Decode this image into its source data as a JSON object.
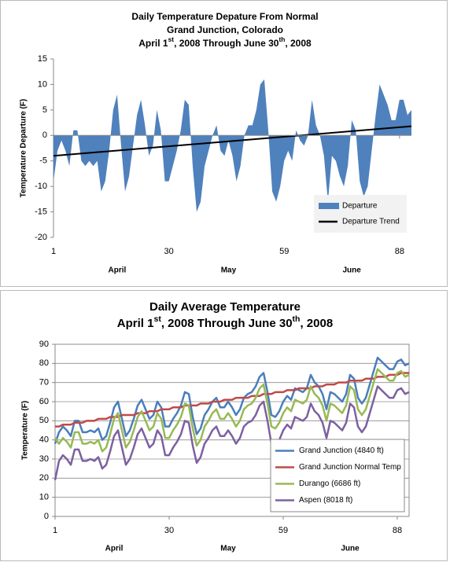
{
  "chart_data": [
    {
      "type": "area",
      "title": [
        "Daily Temperature Depature From Normal",
        "Grand Junction, Colorado"
      ],
      "subtitle_parts": [
        "April 1",
        "st",
        ", 2008 Through June 30",
        "th",
        ", 2008"
      ],
      "y_label": "Temperature Departure (F)",
      "x": [
        1,
        2,
        3,
        4,
        5,
        6,
        7,
        8,
        9,
        10,
        11,
        12,
        13,
        14,
        15,
        16,
        17,
        18,
        19,
        20,
        21,
        22,
        23,
        24,
        25,
        26,
        27,
        28,
        29,
        30,
        31,
        32,
        33,
        34,
        35,
        36,
        37,
        38,
        39,
        40,
        41,
        42,
        43,
        44,
        45,
        46,
        47,
        48,
        49,
        50,
        51,
        52,
        53,
        54,
        55,
        56,
        57,
        58,
        59,
        60,
        61,
        62,
        63,
        64,
        65,
        66,
        67,
        68,
        69,
        70,
        71,
        72,
        73,
        74,
        75,
        76,
        77,
        78,
        79,
        80,
        81,
        82,
        83,
        84,
        85,
        86,
        87,
        88,
        89,
        90,
        91
      ],
      "x_groups": [
        "April",
        "May",
        "June"
      ],
      "series": [
        {
          "name": "Departure",
          "type": "area",
          "color": "#4f81bd",
          "values": [
            -9,
            -3,
            -1,
            -3,
            -6,
            1,
            1,
            -5,
            -6,
            -5,
            -6,
            -5,
            -11,
            -9,
            -3,
            5,
            8,
            -2,
            -11,
            -8,
            -2,
            4,
            7,
            2,
            -4,
            -2,
            5,
            1,
            -9,
            -9,
            -6,
            -3,
            1,
            7,
            6,
            -6,
            -15,
            -13,
            -6,
            -3,
            0,
            2,
            -3,
            -4,
            -1,
            -4,
            -9,
            -6,
            0,
            2,
            2,
            5,
            10,
            11,
            1,
            -11,
            -13,
            -10,
            -5,
            -3,
            -5,
            1,
            -1,
            -2,
            0,
            7,
            2,
            0,
            -4,
            -13,
            -4,
            -5,
            -8,
            -10,
            -6,
            3,
            1,
            -9,
            -12,
            -10,
            -3,
            4,
            10,
            8,
            6,
            3,
            3,
            7,
            7,
            4,
            5
          ]
        },
        {
          "name": "Departure Trend",
          "type": "line",
          "color": "#000000",
          "x": [
            1,
            91
          ],
          "values": [
            -4,
            1.8
          ]
        }
      ],
      "xlim": [
        1,
        91
      ],
      "xticks": [
        1,
        30,
        59,
        88
      ],
      "ylim": [
        -20,
        15
      ],
      "yticks": [
        -20,
        -15,
        -10,
        -5,
        0,
        5,
        10,
        15
      ],
      "grid": false,
      "legend": "lower right"
    },
    {
      "type": "line",
      "title": [
        "Daily Average Temperature"
      ],
      "subtitle_parts": [
        "April 1",
        "st",
        ", 2008 Through June 30",
        "th",
        ", 2008"
      ],
      "y_label": "Temperature (F)",
      "x": [
        1,
        2,
        3,
        4,
        5,
        6,
        7,
        8,
        9,
        10,
        11,
        12,
        13,
        14,
        15,
        16,
        17,
        18,
        19,
        20,
        21,
        22,
        23,
        24,
        25,
        26,
        27,
        28,
        29,
        30,
        31,
        32,
        33,
        34,
        35,
        36,
        37,
        38,
        39,
        40,
        41,
        42,
        43,
        44,
        45,
        46,
        47,
        48,
        49,
        50,
        51,
        52,
        53,
        54,
        55,
        56,
        57,
        58,
        59,
        60,
        61,
        62,
        63,
        64,
        65,
        66,
        67,
        68,
        69,
        70,
        71,
        72,
        73,
        74,
        75,
        76,
        77,
        78,
        79,
        80,
        81,
        82,
        83,
        84,
        85,
        86,
        87,
        88,
        89,
        90,
        91
      ],
      "x_groups": [
        "April",
        "May",
        "June"
      ],
      "series": [
        {
          "name": "Grand Junction (4840 ft)",
          "type": "line",
          "color": "#4a7ebb",
          "values": [
            38,
            44,
            47,
            45,
            42,
            50,
            50,
            44,
            44,
            45,
            44,
            46,
            40,
            42,
            49,
            57,
            60,
            51,
            42,
            45,
            51,
            58,
            61,
            56,
            51,
            53,
            60,
            57,
            47,
            47,
            51,
            54,
            58,
            65,
            64,
            52,
            43,
            46,
            53,
            56,
            60,
            62,
            57,
            57,
            60,
            57,
            53,
            56,
            62,
            64,
            65,
            68,
            73,
            75,
            65,
            53,
            52,
            55,
            60,
            63,
            61,
            67,
            66,
            65,
            67,
            74,
            70,
            68,
            64,
            56,
            65,
            64,
            62,
            60,
            64,
            74,
            72,
            62,
            59,
            62,
            69,
            76,
            83,
            81,
            79,
            77,
            77,
            81,
            82,
            79,
            80
          ]
        },
        {
          "name": "Grand Junction Normal Temp",
          "type": "line",
          "color": "#be4b48",
          "values": [
            47,
            47,
            48,
            48,
            48,
            49,
            49,
            49,
            50,
            50,
            50,
            51,
            51,
            51,
            52,
            52,
            52,
            53,
            53,
            53,
            53,
            54,
            54,
            54,
            55,
            55,
            55,
            56,
            56,
            56,
            57,
            57,
            57,
            58,
            58,
            58,
            58,
            59,
            59,
            59,
            60,
            60,
            60,
            61,
            61,
            61,
            62,
            62,
            62,
            62,
            63,
            63,
            63,
            64,
            64,
            64,
            65,
            65,
            65,
            66,
            66,
            66,
            67,
            67,
            67,
            67,
            68,
            68,
            68,
            69,
            69,
            69,
            70,
            70,
            70,
            71,
            71,
            71,
            71,
            72,
            72,
            72,
            73,
            73,
            73,
            74,
            74,
            74,
            75,
            75,
            75
          ]
        },
        {
          "name": "Durango (6686 ft)",
          "type": "line",
          "color": "#98b954",
          "values": [
            41,
            38,
            41,
            39,
            36,
            44,
            44,
            38,
            38,
            39,
            38,
            40,
            34,
            36,
            43,
            51,
            54,
            45,
            36,
            39,
            45,
            52,
            55,
            50,
            45,
            47,
            54,
            51,
            41,
            41,
            45,
            48,
            52,
            59,
            58,
            46,
            37,
            40,
            47,
            50,
            54,
            56,
            51,
            51,
            54,
            51,
            47,
            50,
            56,
            58,
            59,
            62,
            67,
            69,
            59,
            47,
            46,
            49,
            54,
            57,
            55,
            61,
            60,
            59,
            61,
            68,
            64,
            62,
            58,
            50,
            59,
            58,
            56,
            54,
            58,
            68,
            66,
            56,
            53,
            56,
            63,
            70,
            77,
            75,
            73,
            71,
            71,
            75,
            76,
            73,
            74
          ]
        },
        {
          "name": "Aspen (8018 ft)",
          "type": "line",
          "color": "#7d60a0",
          "values": [
            19,
            29,
            32,
            30,
            27,
            35,
            35,
            29,
            29,
            30,
            29,
            31,
            25,
            27,
            34,
            42,
            45,
            36,
            27,
            30,
            36,
            43,
            46,
            41,
            36,
            38,
            45,
            42,
            32,
            32,
            36,
            39,
            43,
            50,
            49,
            37,
            28,
            31,
            38,
            41,
            45,
            47,
            42,
            42,
            45,
            42,
            38,
            41,
            47,
            49,
            50,
            53,
            58,
            60,
            50,
            38,
            37,
            40,
            45,
            48,
            46,
            52,
            51,
            50,
            52,
            59,
            55,
            53,
            49,
            41,
            50,
            49,
            47,
            45,
            49,
            59,
            57,
            47,
            44,
            47,
            54,
            61,
            68,
            66,
            64,
            62,
            62,
            66,
            67,
            64,
            65
          ]
        }
      ],
      "xlim": [
        1,
        91
      ],
      "xticks": [
        1,
        30,
        59,
        88
      ],
      "ylim": [
        0,
        90
      ],
      "yticks": [
        0,
        10,
        20,
        30,
        40,
        50,
        60,
        70,
        80,
        90
      ],
      "grid": true,
      "legend": "lower right"
    }
  ]
}
